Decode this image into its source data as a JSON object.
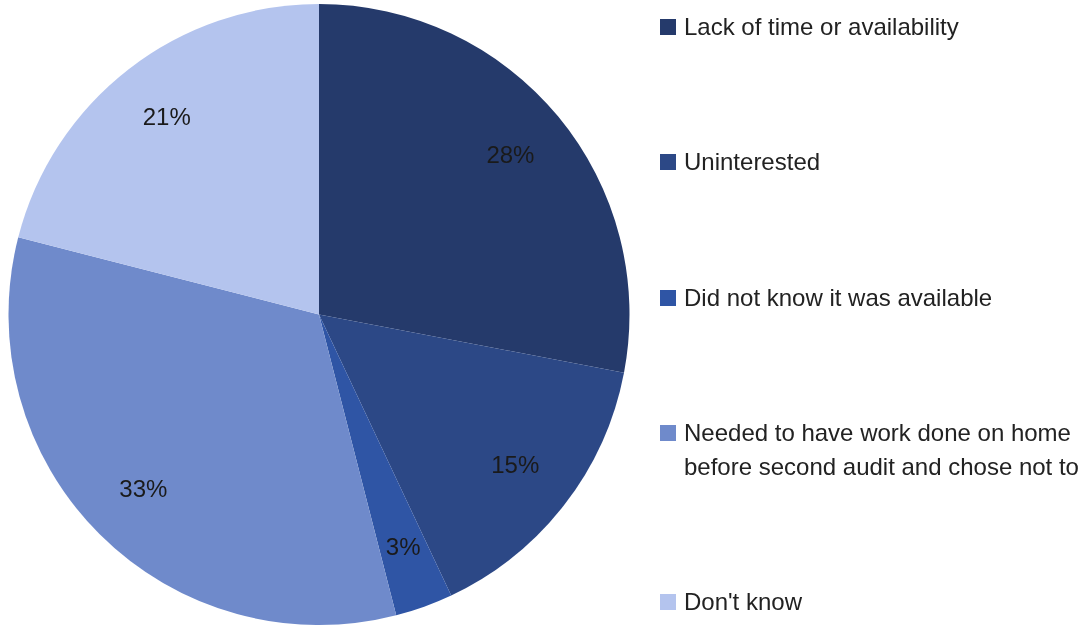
{
  "chart_data": {
    "type": "pie",
    "categories": [
      "Lack of time or availability",
      "Uninterested",
      "Did not know it was available",
      "Needed to have work done on home before second audit and chose not to",
      "Don't know"
    ],
    "values": [
      28,
      15,
      3,
      33,
      21
    ],
    "value_labels": [
      "28%",
      "15%",
      "3%",
      "33%",
      "21%"
    ],
    "colors": [
      "#253a6b",
      "#2c4886",
      "#2f55a5",
      "#6f8acb",
      "#b4c4ee"
    ],
    "legend": "right"
  }
}
